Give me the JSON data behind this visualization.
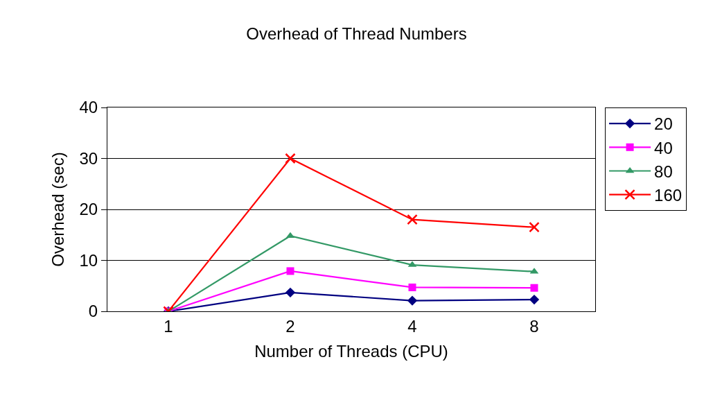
{
  "chart_data": {
    "type": "line",
    "title": "Overhead of Thread Numbers",
    "xlabel": "Number of Threads (CPU)",
    "ylabel": "Overhead (sec)",
    "categories": [
      "1",
      "2",
      "4",
      "8"
    ],
    "series": [
      {
        "name": "20",
        "color": "#000080",
        "marker": "diamond",
        "values": [
          0,
          3.7,
          2.1,
          2.3
        ]
      },
      {
        "name": "40",
        "color": "#ff00ff",
        "marker": "square",
        "values": [
          0,
          7.9,
          4.7,
          4.6
        ]
      },
      {
        "name": "80",
        "color": "#339966",
        "marker": "triangle",
        "values": [
          0,
          14.8,
          9.1,
          7.8
        ]
      },
      {
        "name": "160",
        "color": "#ff0000",
        "marker": "cross",
        "values": [
          0,
          30,
          18,
          16.5
        ]
      }
    ],
    "ylim": [
      0,
      40
    ],
    "yticks": [
      0,
      10,
      20,
      30,
      40
    ],
    "grid": "y",
    "legend": "right"
  }
}
